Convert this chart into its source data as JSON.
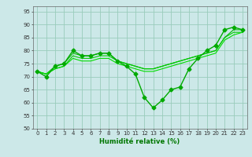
{
  "title": "",
  "xlabel": "Humidité relative (%)",
  "ylabel": "",
  "xlim": [
    -0.5,
    23.5
  ],
  "ylim": [
    50,
    97
  ],
  "yticks": [
    50,
    55,
    60,
    65,
    70,
    75,
    80,
    85,
    90,
    95
  ],
  "xticks": [
    0,
    1,
    2,
    3,
    4,
    5,
    6,
    7,
    8,
    9,
    10,
    11,
    12,
    13,
    14,
    15,
    16,
    17,
    18,
    19,
    20,
    21,
    22,
    23
  ],
  "background_color": "#cce8e8",
  "grid_color": "#99ccbb",
  "series": [
    {
      "x": [
        0,
        1,
        2,
        3,
        4,
        5,
        6,
        7,
        8,
        9,
        10,
        11,
        12,
        13,
        14,
        15,
        16,
        17,
        18,
        19,
        20,
        21,
        22,
        23
      ],
      "y": [
        72,
        70,
        74,
        75,
        80,
        78,
        78,
        79,
        79,
        76,
        74,
        71,
        62,
        58,
        61,
        65,
        66,
        73,
        77,
        80,
        82,
        88,
        89,
        88
      ],
      "color": "#00aa00",
      "marker": "D",
      "markersize": 2.5,
      "linewidth": 1.0
    },
    {
      "x": [
        0,
        1,
        2,
        3,
        4,
        5,
        6,
        7,
        8,
        9,
        10,
        11,
        12,
        13,
        14,
        15,
        16,
        17,
        18,
        19,
        20,
        21,
        22,
        23
      ],
      "y": [
        72,
        71,
        74,
        75,
        79,
        78,
        78,
        79,
        79,
        76,
        75,
        74,
        73,
        73,
        74,
        75,
        76,
        77,
        78,
        79,
        80,
        85,
        88,
        88
      ],
      "color": "#00bb00",
      "marker": null,
      "markersize": 0,
      "linewidth": 0.8
    },
    {
      "x": [
        0,
        1,
        2,
        3,
        4,
        5,
        6,
        7,
        8,
        9,
        10,
        11,
        12,
        13,
        14,
        15,
        16,
        17,
        18,
        19,
        20,
        21,
        22,
        23
      ],
      "y": [
        72,
        71,
        73,
        74,
        78,
        77,
        77,
        78,
        78,
        76,
        75,
        74,
        73,
        73,
        74,
        75,
        76,
        77,
        78,
        79,
        80,
        85,
        87,
        87
      ],
      "color": "#00cc00",
      "marker": null,
      "markersize": 0,
      "linewidth": 0.8
    },
    {
      "x": [
        0,
        1,
        2,
        3,
        4,
        5,
        6,
        7,
        8,
        9,
        10,
        11,
        12,
        13,
        14,
        15,
        16,
        17,
        18,
        19,
        20,
        21,
        22,
        23
      ],
      "y": [
        72,
        71,
        73,
        74,
        77,
        76,
        76,
        77,
        77,
        75,
        74,
        73,
        72,
        72,
        73,
        74,
        75,
        76,
        77,
        78,
        79,
        84,
        86,
        87
      ],
      "color": "#00dd00",
      "marker": null,
      "markersize": 0,
      "linewidth": 0.8
    }
  ]
}
